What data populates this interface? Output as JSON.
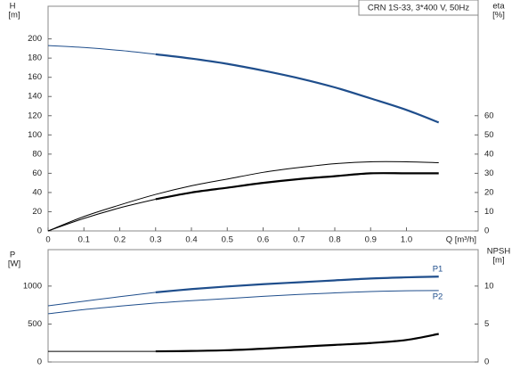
{
  "chart_data": [
    {
      "type": "line",
      "title": "CRN 1S-33, 3*400 V, 50Hz",
      "y_label": "H",
      "y_unit": "[m]",
      "y2_label": "eta",
      "y2_unit": "[%]",
      "x_label": "Q [m³/h]",
      "xlim": [
        0,
        1.2
      ],
      "xticks": [
        0,
        0.1,
        0.2,
        0.3,
        0.4,
        0.5,
        0.6,
        0.7,
        0.8,
        0.9,
        {
          "value": 1.0,
          "label": "1.0"
        }
      ],
      "ylim": [
        0,
        234
      ],
      "yticks": [
        0,
        20,
        40,
        60,
        80,
        100,
        120,
        140,
        160,
        180,
        200
      ],
      "y2lim": [
        0,
        117
      ],
      "y2ticks": [
        0,
        10,
        20,
        30,
        40,
        50,
        60
      ],
      "x": [
        0,
        0.1,
        0.2,
        0.3,
        0.4,
        0.5,
        0.6,
        0.7,
        0.8,
        0.9,
        1.0,
        1.09
      ],
      "series": [
        {
          "color": "#1f4e8c",
          "thick_from": 0.3,
          "values": [
            193,
            191,
            188,
            184,
            179.5,
            174,
            167,
            159,
            149.5,
            138,
            126,
            113
          ]
        },
        {
          "color": "#000000",
          "axis": "y2",
          "values": [
            0,
            7.5,
            13.5,
            19,
            23.5,
            27,
            30.5,
            33,
            35,
            36,
            36,
            35.5
          ]
        },
        {
          "color": "#000000",
          "axis": "y2",
          "thick_from": 0.3,
          "values": [
            0,
            6.5,
            12,
            16.5,
            20,
            22.5,
            25,
            27,
            28.5,
            30,
            30,
            30
          ]
        }
      ]
    },
    {
      "type": "line",
      "y_label": "P",
      "y_unit": "[W]",
      "y2_label": "NPSH",
      "y2_unit": "[m]",
      "xlim": [
        0,
        1.2
      ],
      "ylim": [
        0,
        1480
      ],
      "yticks": [
        0,
        500,
        1000
      ],
      "y2lim": [
        0,
        14.8
      ],
      "y2ticks": [
        0,
        5,
        10
      ],
      "x": [
        0,
        0.1,
        0.2,
        0.3,
        0.4,
        0.5,
        0.6,
        0.7,
        0.8,
        0.9,
        1.0,
        1.09
      ],
      "series": [
        {
          "name": "P1",
          "color": "#1f4e8c",
          "thick_from": 0.3,
          "values": [
            740,
            800,
            860,
            918,
            960,
            995,
            1025,
            1050,
            1075,
            1100,
            1115,
            1125
          ]
        },
        {
          "name": "P2",
          "color": "#1f4e8c",
          "values": [
            635,
            690,
            735,
            776,
            808,
            835,
            865,
            890,
            910,
            928,
            938,
            941
          ]
        },
        {
          "color": "#000000",
          "axis": "y2",
          "thick_from": 0.3,
          "values": [
            1.4,
            1.4,
            1.4,
            1.4,
            1.45,
            1.55,
            1.75,
            2.0,
            2.25,
            2.5,
            2.9,
            3.7
          ]
        }
      ]
    }
  ]
}
